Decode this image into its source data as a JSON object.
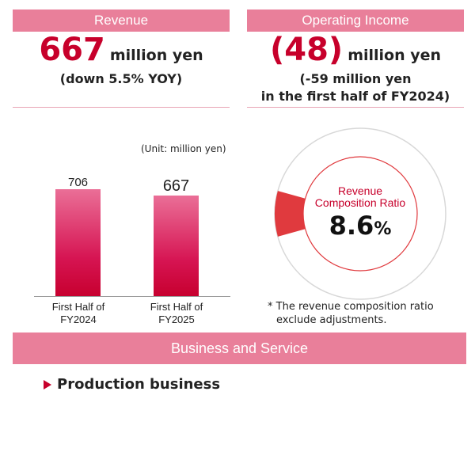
{
  "revenue": {
    "header": "Revenue",
    "value": "667",
    "unit": "million yen",
    "change": "(down 5.5% YOY)"
  },
  "operating_income": {
    "header": "Operating Income",
    "value": "(48)",
    "unit": "million yen",
    "note_line1": "(-59 million yen",
    "note_line2": "in the first half of FY2024)"
  },
  "bar_chart": {
    "unit_note": "(Unit: million yen)",
    "bars": [
      {
        "label_line1": "First Half of",
        "label_line2": "FY2024",
        "value_label": "706"
      },
      {
        "label_line1": "First Half of",
        "label_line2": "FY2025",
        "value_label": "667"
      }
    ]
  },
  "donut": {
    "title_line1": "Revenue",
    "title_line2": "Composition Ratio",
    "value": "8.6",
    "percent_sign": "%",
    "footnote_line1": "* The revenue composition ratio",
    "footnote_line2": "exclude adjustments."
  },
  "section": {
    "title": "Business and Service",
    "item": "Production business"
  },
  "colors": {
    "accent": "#c7002b",
    "header_bg": "#e97f9a",
    "donut_slice": "#e03a3e",
    "donut_ring": "#d8d8d8"
  },
  "chart_data": [
    {
      "type": "bar",
      "categories": [
        "First Half of FY2024",
        "First Half of FY2025"
      ],
      "values": [
        706,
        667
      ],
      "title": "",
      "unit": "(Unit: million yen)",
      "ylim": [
        0,
        800
      ]
    },
    {
      "type": "pie",
      "labels": [
        "Revenue Composition Ratio"
      ],
      "values": [
        8.6
      ],
      "title": "Revenue Composition Ratio"
    }
  ]
}
